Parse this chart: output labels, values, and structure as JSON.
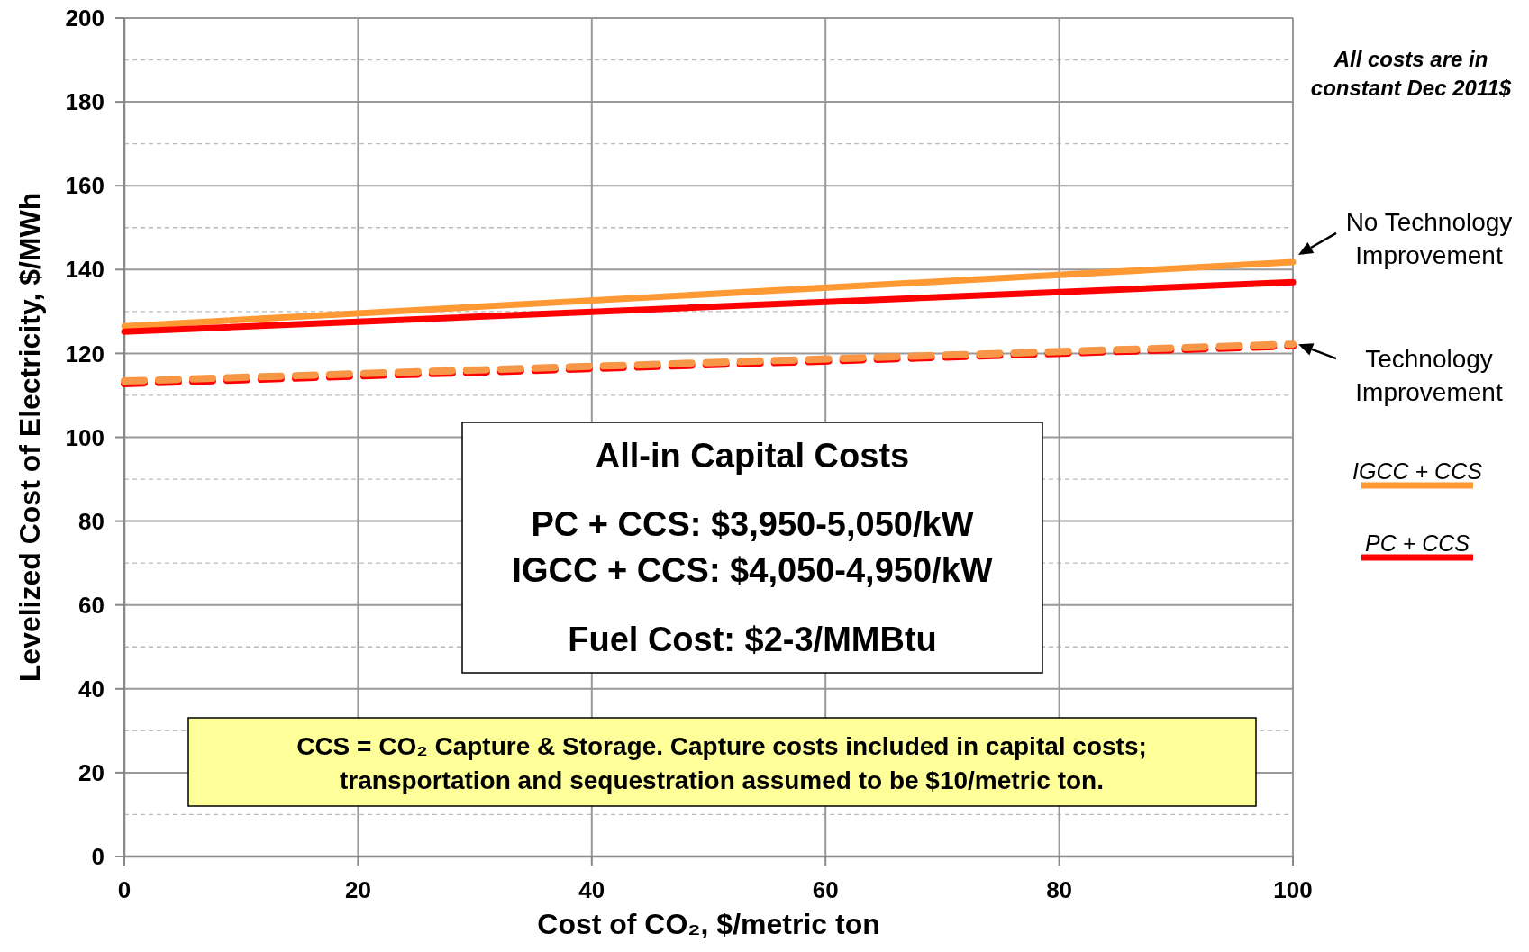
{
  "chart_data": {
    "type": "line",
    "xlabel": "Cost of CO₂, $/metric ton",
    "ylabel": "Levelized Cost of Electricity, $/MWh",
    "x": [
      0,
      100
    ],
    "xlim": [
      0,
      100
    ],
    "xticks": [
      0,
      20,
      40,
      60,
      80,
      100
    ],
    "ylim": [
      0,
      200
    ],
    "yticks": [
      0,
      {
        "value": 10,
        "label": null
      },
      20,
      {
        "value": 30,
        "label": null
      },
      40,
      {
        "value": 50,
        "label": null
      },
      60,
      {
        "value": 70,
        "label": null
      },
      80,
      {
        "value": 90,
        "label": null
      },
      100,
      {
        "value": 110,
        "label": null
      },
      120,
      {
        "value": 130,
        "label": null
      },
      140,
      {
        "value": 150,
        "label": null
      },
      160,
      {
        "value": 170,
        "label": null
      },
      180,
      {
        "value": 190,
        "label": null
      },
      200
    ],
    "grid": true,
    "legend": "right",
    "marker": "none",
    "series": [
      {
        "name": "IGCC + CCS",
        "color": "#ff9933",
        "values": [
          126.5,
          141.8
        ],
        "line_style": "solid"
      },
      {
        "name": "PC + CCS",
        "color": "#ff0000",
        "values": [
          125.2,
          137
        ],
        "line_style": "solid"
      },
      {
        "color": "#ff0000",
        "values": [
          112.8,
          121.8
        ],
        "line_style": "dashed"
      },
      {
        "color": "#f79646",
        "values": [
          113.4,
          122.2
        ],
        "line_style": "dashed"
      }
    ],
    "annotations": [
      "All costs are in constant Dec 2011$",
      {
        "text": "No Technology Improvement",
        "x": 100,
        "y": 141.8
      },
      {
        "text": "Technology Improvement",
        "x": 100,
        "y": 122.2
      },
      "All-in Capital Costs",
      "PC + CCS: $3,950-5,050/kW",
      "IGCC + CCS: $4,050-4,950/kW",
      "Fuel Cost: $2-3/MMBtu",
      "CCS = CO₂ Capture & Storage. Capture costs included in capital costs; transportation and sequestration assumed to be $10/metric ton."
    ]
  }
}
